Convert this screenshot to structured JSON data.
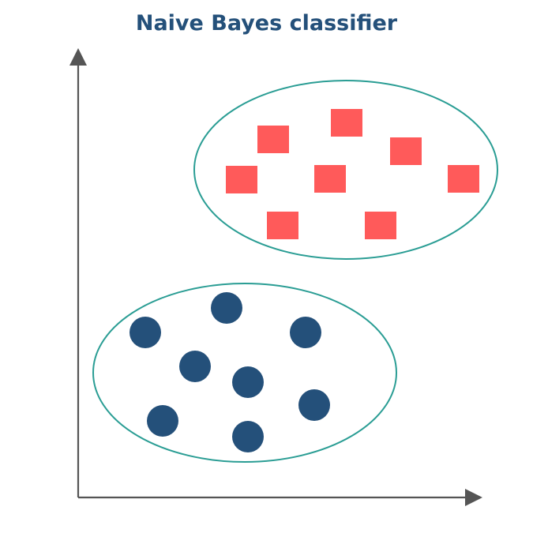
{
  "title": "Naive Bayes classifier",
  "colors": {
    "title": "#24507a",
    "axis": "#555555",
    "cluster_outline": "#2a9d94",
    "square": "#ff5a5a",
    "circle": "#24507a"
  },
  "clusters": [
    {
      "name": "square-cluster",
      "shape": "square",
      "count": 8
    },
    {
      "name": "circle-cluster",
      "shape": "circle",
      "count": 8
    }
  ]
}
